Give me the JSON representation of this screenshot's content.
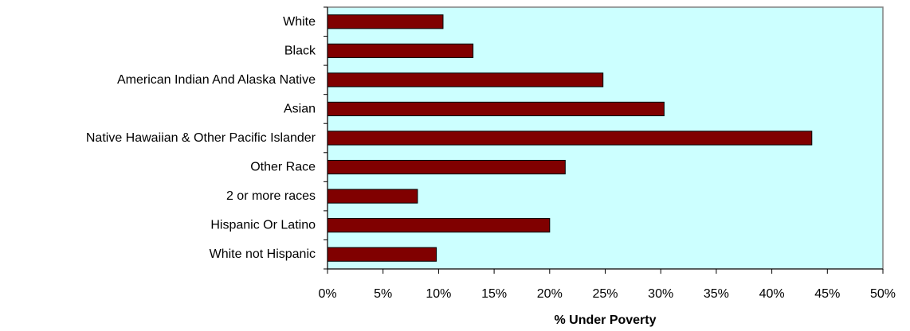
{
  "chart_data": {
    "type": "bar",
    "orientation": "horizontal",
    "categories": [
      "White",
      "Black",
      "American Indian And Alaska Native",
      "Asian",
      "Native Hawaiian & Other Pacific Islander",
      "Other Race",
      "2 or more races",
      "Hispanic Or Latino",
      "White not Hispanic"
    ],
    "values": [
      10.4,
      13.1,
      24.8,
      30.3,
      43.6,
      21.4,
      8.1,
      20.0,
      9.8
    ],
    "xlabel": "% Under Poverty",
    "ylabel": "",
    "xlim": [
      0,
      50
    ],
    "xticks": [
      0,
      5,
      10,
      15,
      20,
      25,
      30,
      35,
      40,
      45,
      50
    ],
    "xtick_labels": [
      "0%",
      "5%",
      "10%",
      "15%",
      "20%",
      "25%",
      "30%",
      "35%",
      "40%",
      "45%",
      "50%"
    ],
    "grid": false,
    "legend": "none",
    "colors": {
      "bar": "#800000",
      "plot_background": "#ccffff",
      "plot_border": "#808080"
    }
  }
}
